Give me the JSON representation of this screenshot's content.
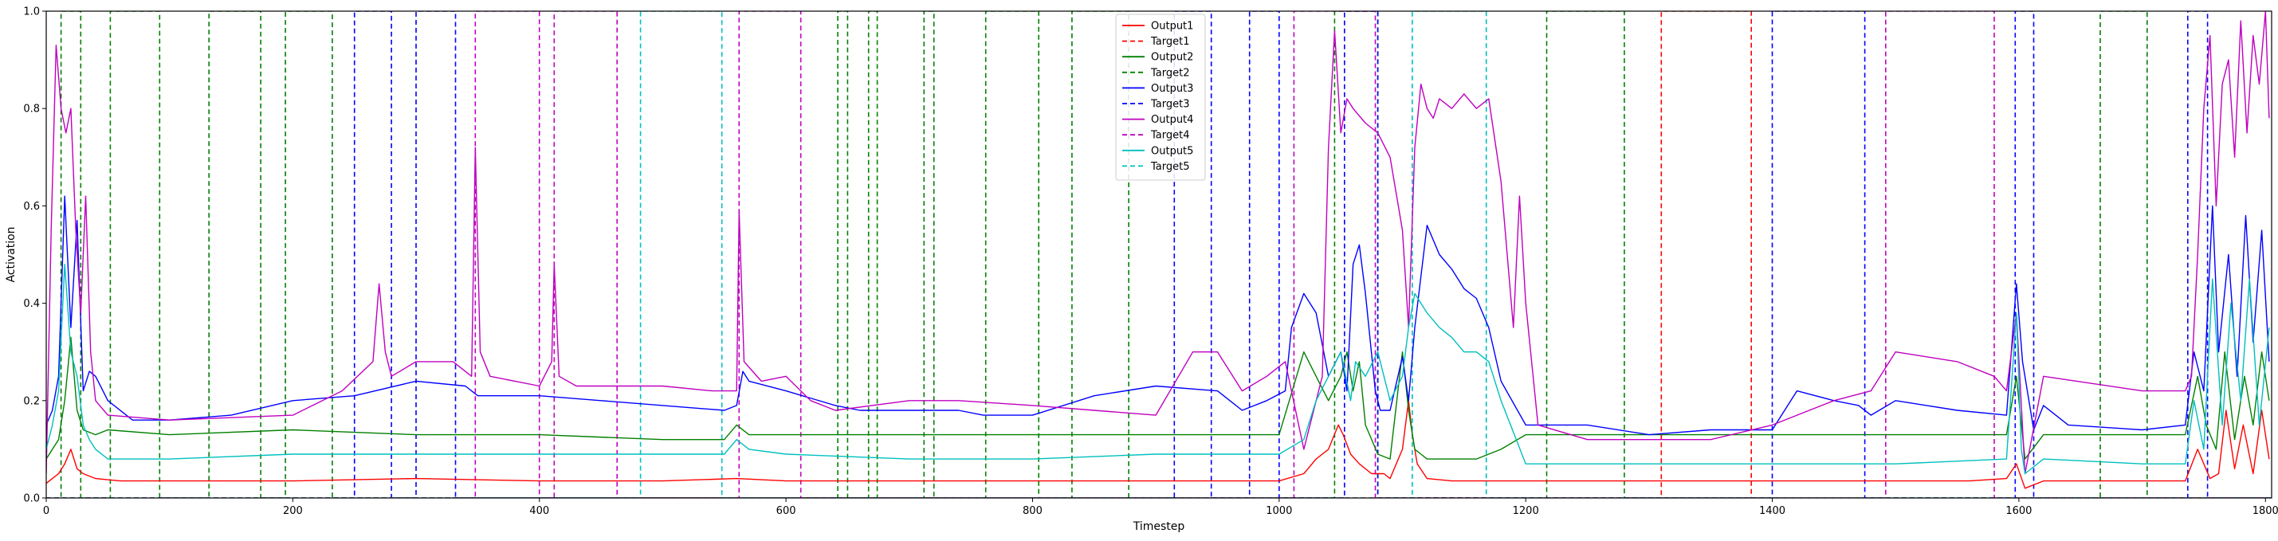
{
  "chart_data": {
    "type": "line",
    "title": "",
    "xlabel": "Timestep",
    "ylabel": "Activation",
    "xlim": [
      0,
      1805
    ],
    "ylim": [
      0,
      1.0
    ],
    "xticks": [
      0,
      200,
      400,
      600,
      800,
      1000,
      1200,
      1400,
      1600,
      1800
    ],
    "yticks": [
      0.0,
      0.2,
      0.4,
      0.6,
      0.8,
      1.0
    ],
    "xtick_labels": [
      "0",
      "200",
      "400",
      "600",
      "800",
      "1000",
      "1200",
      "1400",
      "1600",
      "1800"
    ],
    "ytick_labels": [
      "0.0",
      "0.2",
      "0.4",
      "0.6",
      "0.8",
      "1.0"
    ],
    "grid": false,
    "legend_position": "top-center",
    "legend": [
      {
        "label": "Output1",
        "color": "#ff0000",
        "dash": "solid"
      },
      {
        "label": "Target1",
        "color": "#ff0000",
        "dash": "dashed"
      },
      {
        "label": "Output2",
        "color": "#008000",
        "dash": "solid"
      },
      {
        "label": "Target2",
        "color": "#008000",
        "dash": "dashed"
      },
      {
        "label": "Output3",
        "color": "#0000ff",
        "dash": "solid"
      },
      {
        "label": "Target3",
        "color": "#0000ff",
        "dash": "dashed"
      },
      {
        "label": "Output4",
        "color": "#bf00bf",
        "dash": "solid"
      },
      {
        "label": "Target4",
        "color": "#bf00bf",
        "dash": "dashed"
      },
      {
        "label": "Output5",
        "color": "#00bfbf",
        "dash": "solid"
      },
      {
        "label": "Target5",
        "color": "#00bfbf",
        "dash": "dashed"
      }
    ],
    "targets": [
      {
        "name": "Target1",
        "color": "#ff0000",
        "intervals": [
          [
            1310,
            1383
          ]
        ]
      },
      {
        "name": "Target2",
        "color": "#008000",
        "intervals": [
          [
            12,
            28
          ],
          [
            52,
            92
          ],
          [
            132,
            174
          ],
          [
            194,
            232
          ],
          [
            642,
            650
          ],
          [
            667,
            674
          ],
          [
            712,
            720
          ],
          [
            762,
            805
          ],
          [
            832,
            878
          ],
          [
            1045,
            1080
          ],
          [
            1217,
            1280
          ],
          [
            1666,
            1704
          ]
        ]
      },
      {
        "name": "Target3",
        "color": "#0000ff",
        "intervals": [
          [
            250,
            280
          ],
          [
            300,
            332
          ],
          [
            915,
            945
          ],
          [
            976,
            1000
          ],
          [
            1053,
            1080
          ],
          [
            1400,
            1475
          ],
          [
            1597,
            1612
          ],
          [
            1737,
            1753
          ]
        ]
      },
      {
        "name": "Target4",
        "color": "#bf00bf",
        "intervals": [
          [
            348,
            400
          ],
          [
            412,
            463
          ],
          [
            562,
            612
          ],
          [
            1012,
            1078
          ],
          [
            1492,
            1580
          ]
        ]
      },
      {
        "name": "Target5",
        "color": "#00bfbf",
        "intervals": [
          [
            482,
            548
          ],
          [
            1108,
            1168
          ]
        ]
      }
    ],
    "series": [
      {
        "name": "Output1",
        "color": "#ff0000",
        "x": [
          0,
          5,
          10,
          15,
          20,
          25,
          30,
          40,
          60,
          100,
          200,
          300,
          400,
          500,
          560,
          600,
          700,
          800,
          900,
          1000,
          1020,
          1030,
          1040,
          1048,
          1052,
          1058,
          1065,
          1075,
          1085,
          1090,
          1100,
          1105,
          1108,
          1112,
          1120,
          1140,
          1160,
          1180,
          1200,
          1300,
          1400,
          1500,
          1560,
          1590,
          1598,
          1605,
          1620,
          1640,
          1700,
          1735,
          1745,
          1755,
          1762,
          1768,
          1775,
          1782,
          1790,
          1797,
          1803
        ],
        "y": [
          0.03,
          0.04,
          0.05,
          0.07,
          0.1,
          0.06,
          0.05,
          0.04,
          0.035,
          0.035,
          0.035,
          0.04,
          0.035,
          0.035,
          0.04,
          0.035,
          0.035,
          0.035,
          0.035,
          0.035,
          0.05,
          0.08,
          0.1,
          0.15,
          0.13,
          0.09,
          0.07,
          0.05,
          0.05,
          0.04,
          0.1,
          0.2,
          0.13,
          0.07,
          0.04,
          0.035,
          0.035,
          0.035,
          0.035,
          0.035,
          0.035,
          0.035,
          0.035,
          0.04,
          0.07,
          0.02,
          0.035,
          0.035,
          0.035,
          0.035,
          0.1,
          0.04,
          0.05,
          0.18,
          0.06,
          0.15,
          0.05,
          0.18,
          0.08
        ]
      },
      {
        "name": "Output2",
        "color": "#008000",
        "x": [
          0,
          5,
          10,
          15,
          20,
          25,
          30,
          40,
          50,
          100,
          200,
          300,
          400,
          500,
          550,
          560,
          570,
          600,
          700,
          800,
          900,
          1000,
          1020,
          1030,
          1040,
          1050,
          1055,
          1060,
          1065,
          1070,
          1080,
          1090,
          1100,
          1105,
          1110,
          1115,
          1120,
          1140,
          1160,
          1180,
          1200,
          1300,
          1400,
          1500,
          1590,
          1598,
          1605,
          1620,
          1700,
          1735,
          1745,
          1752,
          1760,
          1767,
          1775,
          1783,
          1790,
          1797,
          1803
        ],
        "y": [
          0.08,
          0.1,
          0.12,
          0.2,
          0.33,
          0.18,
          0.14,
          0.13,
          0.14,
          0.13,
          0.14,
          0.13,
          0.13,
          0.12,
          0.12,
          0.15,
          0.13,
          0.13,
          0.13,
          0.13,
          0.13,
          0.13,
          0.3,
          0.25,
          0.2,
          0.25,
          0.3,
          0.22,
          0.28,
          0.15,
          0.09,
          0.08,
          0.3,
          0.18,
          0.1,
          0.09,
          0.08,
          0.08,
          0.08,
          0.1,
          0.13,
          0.13,
          0.13,
          0.13,
          0.13,
          0.25,
          0.08,
          0.13,
          0.13,
          0.13,
          0.25,
          0.15,
          0.1,
          0.3,
          0.12,
          0.25,
          0.15,
          0.3,
          0.2
        ]
      },
      {
        "name": "Output3",
        "color": "#0000ff",
        "x": [
          0,
          5,
          10,
          15,
          20,
          25,
          30,
          35,
          40,
          50,
          70,
          100,
          150,
          200,
          250,
          300,
          340,
          350,
          400,
          450,
          500,
          550,
          560,
          565,
          570,
          600,
          640,
          660,
          700,
          740,
          760,
          800,
          850,
          900,
          950,
          970,
          990,
          1005,
          1010,
          1020,
          1030,
          1040,
          1050,
          1055,
          1060,
          1065,
          1070,
          1078,
          1082,
          1090,
          1100,
          1105,
          1110,
          1120,
          1130,
          1140,
          1150,
          1160,
          1170,
          1180,
          1200,
          1250,
          1300,
          1350,
          1400,
          1420,
          1450,
          1470,
          1480,
          1500,
          1550,
          1590,
          1598,
          1603,
          1612,
          1620,
          1640,
          1700,
          1735,
          1742,
          1750,
          1757,
          1762,
          1770,
          1777,
          1784,
          1790,
          1797,
          1803
        ],
        "y": [
          0.15,
          0.18,
          0.25,
          0.62,
          0.35,
          0.57,
          0.22,
          0.26,
          0.25,
          0.2,
          0.16,
          0.16,
          0.17,
          0.2,
          0.21,
          0.24,
          0.23,
          0.21,
          0.21,
          0.2,
          0.19,
          0.18,
          0.19,
          0.26,
          0.24,
          0.22,
          0.19,
          0.18,
          0.18,
          0.18,
          0.17,
          0.17,
          0.21,
          0.23,
          0.22,
          0.18,
          0.2,
          0.22,
          0.35,
          0.42,
          0.38,
          0.25,
          0.3,
          0.22,
          0.48,
          0.52,
          0.42,
          0.22,
          0.18,
          0.18,
          0.29,
          0.2,
          0.35,
          0.56,
          0.5,
          0.47,
          0.43,
          0.41,
          0.35,
          0.24,
          0.15,
          0.15,
          0.13,
          0.14,
          0.14,
          0.22,
          0.2,
          0.19,
          0.17,
          0.2,
          0.18,
          0.17,
          0.44,
          0.28,
          0.14,
          0.19,
          0.15,
          0.14,
          0.15,
          0.3,
          0.22,
          0.6,
          0.3,
          0.5,
          0.25,
          0.58,
          0.32,
          0.55,
          0.28
        ]
      },
      {
        "name": "Output4",
        "color": "#bf00bf",
        "x": [
          0,
          4,
          8,
          12,
          16,
          20,
          24,
          28,
          32,
          36,
          40,
          50,
          100,
          200,
          240,
          265,
          270,
          275,
          280,
          300,
          330,
          345,
          348,
          352,
          360,
          400,
          410,
          412,
          416,
          430,
          460,
          500,
          540,
          560,
          562,
          566,
          580,
          600,
          620,
          640,
          700,
          740,
          800,
          850,
          900,
          930,
          950,
          970,
          990,
          1005,
          1020,
          1035,
          1040,
          1045,
          1050,
          1055,
          1060,
          1070,
          1080,
          1090,
          1100,
          1105,
          1110,
          1115,
          1120,
          1125,
          1130,
          1140,
          1150,
          1160,
          1170,
          1180,
          1190,
          1195,
          1200,
          1210,
          1250,
          1300,
          1350,
          1400,
          1450,
          1480,
          1500,
          1550,
          1580,
          1590,
          1598,
          1605,
          1620,
          1700,
          1735,
          1740,
          1745,
          1750,
          1755,
          1760,
          1765,
          1770,
          1775,
          1780,
          1785,
          1790,
          1795,
          1800,
          1803
        ],
        "y": [
          0.05,
          0.55,
          0.93,
          0.8,
          0.75,
          0.8,
          0.55,
          0.38,
          0.62,
          0.3,
          0.2,
          0.17,
          0.16,
          0.17,
          0.22,
          0.28,
          0.44,
          0.3,
          0.25,
          0.28,
          0.28,
          0.25,
          0.72,
          0.3,
          0.25,
          0.23,
          0.28,
          0.48,
          0.25,
          0.23,
          0.23,
          0.23,
          0.22,
          0.22,
          0.59,
          0.28,
          0.24,
          0.25,
          0.2,
          0.18,
          0.2,
          0.2,
          0.19,
          0.18,
          0.17,
          0.3,
          0.3,
          0.22,
          0.25,
          0.28,
          0.1,
          0.25,
          0.72,
          0.96,
          0.75,
          0.82,
          0.8,
          0.77,
          0.75,
          0.7,
          0.55,
          0.35,
          0.72,
          0.85,
          0.8,
          0.78,
          0.82,
          0.8,
          0.83,
          0.8,
          0.82,
          0.65,
          0.35,
          0.62,
          0.4,
          0.15,
          0.12,
          0.12,
          0.12,
          0.15,
          0.2,
          0.22,
          0.3,
          0.28,
          0.25,
          0.22,
          0.38,
          0.05,
          0.25,
          0.22,
          0.22,
          0.25,
          0.5,
          0.8,
          0.95,
          0.6,
          0.85,
          0.9,
          0.7,
          0.98,
          0.75,
          0.95,
          0.85,
          1.0,
          0.78
        ]
      },
      {
        "name": "Output5",
        "color": "#00bfbf",
        "x": [
          0,
          5,
          10,
          15,
          20,
          25,
          30,
          35,
          40,
          50,
          100,
          200,
          300,
          400,
          500,
          550,
          560,
          570,
          600,
          700,
          800,
          900,
          1000,
          1020,
          1030,
          1040,
          1050,
          1058,
          1062,
          1070,
          1080,
          1090,
          1100,
          1105,
          1110,
          1120,
          1130,
          1140,
          1150,
          1160,
          1170,
          1180,
          1200,
          1300,
          1400,
          1500,
          1590,
          1598,
          1602,
          1605,
          1620,
          1700,
          1735,
          1742,
          1750,
          1757,
          1765,
          1772,
          1780,
          1787,
          1795,
          1803
        ],
        "y": [
          0.1,
          0.15,
          0.22,
          0.48,
          0.3,
          0.25,
          0.15,
          0.12,
          0.1,
          0.08,
          0.08,
          0.09,
          0.09,
          0.09,
          0.09,
          0.09,
          0.12,
          0.1,
          0.09,
          0.08,
          0.08,
          0.09,
          0.09,
          0.12,
          0.2,
          0.25,
          0.3,
          0.2,
          0.28,
          0.25,
          0.3,
          0.2,
          0.25,
          0.35,
          0.42,
          0.38,
          0.35,
          0.33,
          0.3,
          0.3,
          0.28,
          0.2,
          0.07,
          0.07,
          0.07,
          0.07,
          0.08,
          0.38,
          0.1,
          0.05,
          0.08,
          0.07,
          0.07,
          0.2,
          0.1,
          0.45,
          0.15,
          0.4,
          0.2,
          0.45,
          0.15,
          0.35
        ]
      }
    ]
  }
}
